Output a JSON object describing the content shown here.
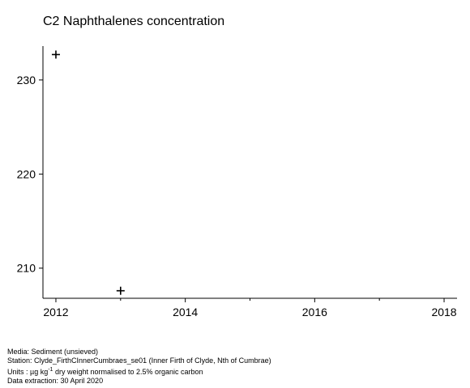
{
  "chart_data": {
    "type": "scatter",
    "title": "C2 Naphthalenes concentration",
    "xlabel": "",
    "ylabel": "",
    "marker": "plus",
    "x_ticks": [
      2012,
      2014,
      2016,
      2018
    ],
    "y_ticks": [
      210,
      220,
      230
    ],
    "xlim": [
      2011.8,
      2018.2
    ],
    "ylim": [
      206.8,
      233.6
    ],
    "grid": false,
    "points": [
      {
        "x": 2012,
        "y": 232.7
      },
      {
        "x": 2013,
        "y": 207.6
      }
    ]
  },
  "footer": {
    "media": "Media: Sediment (unsieved)",
    "station": "Station: Clyde_FirthCInnerCumbraes_se01 (Inner Firth of Clyde, Nth of Cumbrae)",
    "units_prefix": "Units : µg kg",
    "units_exp": "-1",
    "units_suffix": " dry weight normalised to 2.5% organic carbon",
    "extraction": "Data extraction: 30 April 2020"
  }
}
